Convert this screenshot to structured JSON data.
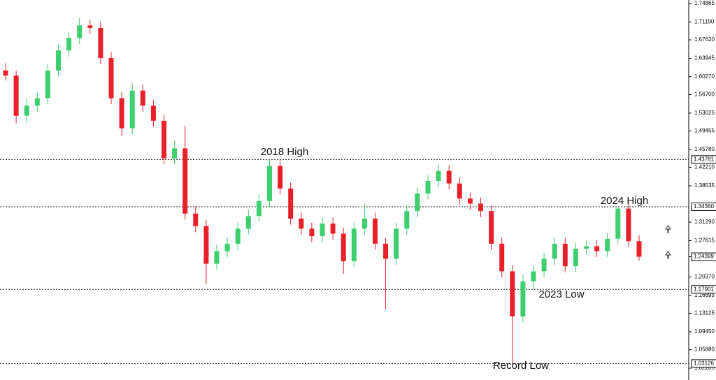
{
  "chart_data": {
    "type": "candlestick",
    "color_up": "#3dcf6e",
    "color_down": "#e8202a",
    "ylim": [
      1.0179,
      1.7556
    ],
    "yticks": [
      {
        "value": 1.74865,
        "label": "1.74865"
      },
      {
        "value": 1.7119,
        "label": "1.71190"
      },
      {
        "value": 1.6762,
        "label": "1.67620"
      },
      {
        "value": 1.63945,
        "label": "1.63945"
      },
      {
        "value": 1.6027,
        "label": "1.60270"
      },
      {
        "value": 1.567,
        "label": "1.56700"
      },
      {
        "value": 1.53025,
        "label": "1.53025"
      },
      {
        "value": 1.49455,
        "label": "1.49455"
      },
      {
        "value": 1.4578,
        "label": "1.45780"
      },
      {
        "value": 1.4221,
        "label": "1.42210"
      },
      {
        "value": 1.38535,
        "label": "1.38535"
      },
      {
        "value": 1.3129,
        "label": "1.31290"
      },
      {
        "value": 1.27615,
        "label": "1.27615"
      },
      {
        "value": 1.2037,
        "label": "1.20370"
      },
      {
        "value": 1.16695,
        "label": "1.16695"
      },
      {
        "value": 1.13125,
        "label": "1.13125"
      },
      {
        "value": 1.0945,
        "label": "1.09450"
      },
      {
        "value": 1.0588,
        "label": "1.05880"
      },
      {
        "value": 1.02205,
        "label": "1.02205"
      }
    ],
    "levels": [
      {
        "value": 1.43781,
        "label": "1.43781"
      },
      {
        "value": 1.3436,
        "label": "1.34360"
      },
      {
        "value": 1.17901,
        "label": "1.17901"
      },
      {
        "value": 1.03126,
        "label": "1.03126"
      }
    ],
    "price_label": {
      "value": 1.24399,
      "label": "1.24399"
    },
    "annotations": [
      "2018 High",
      "2024 High",
      "2023 Low",
      "Record Low"
    ],
    "open": [
      1.615,
      1.605,
      1.525,
      1.545,
      1.56,
      1.615,
      1.655,
      1.68,
      1.705,
      1.7,
      1.64,
      1.56,
      1.5,
      1.575,
      1.545,
      1.515,
      1.44,
      1.46,
      1.33,
      1.305,
      1.23,
      1.255,
      1.27,
      1.3,
      1.325,
      1.355,
      1.425,
      1.38,
      1.32,
      1.3,
      1.285,
      1.31,
      1.29,
      1.235,
      1.3,
      1.32,
      1.27,
      1.24,
      1.3,
      1.335,
      1.37,
      1.395,
      1.415,
      1.39,
      1.36,
      1.35,
      1.335,
      1.27,
      1.215,
      1.125,
      1.195,
      1.215,
      1.24,
      1.27,
      1.225,
      1.26,
      1.265,
      1.255,
      1.28,
      1.34,
      1.275
    ],
    "high": [
      1.63,
      1.615,
      1.558,
      1.572,
      1.628,
      1.668,
      1.692,
      1.72,
      1.716,
      1.712,
      1.652,
      1.572,
      1.59,
      1.587,
      1.557,
      1.527,
      1.475,
      1.505,
      1.345,
      1.317,
      1.268,
      1.282,
      1.312,
      1.338,
      1.368,
      1.4378,
      1.437,
      1.392,
      1.332,
      1.312,
      1.322,
      1.322,
      1.302,
      1.312,
      1.35,
      1.332,
      1.282,
      1.312,
      1.347,
      1.382,
      1.407,
      1.427,
      1.427,
      1.402,
      1.372,
      1.362,
      1.347,
      1.282,
      1.227,
      1.207,
      1.227,
      1.252,
      1.282,
      1.282,
      1.272,
      1.277,
      1.277,
      1.292,
      1.3436,
      1.352,
      1.287
    ],
    "low": [
      1.595,
      1.51,
      1.51,
      1.532,
      1.548,
      1.603,
      1.643,
      1.668,
      1.688,
      1.628,
      1.548,
      1.485,
      1.488,
      1.533,
      1.503,
      1.428,
      1.428,
      1.318,
      1.293,
      1.19,
      1.218,
      1.243,
      1.258,
      1.288,
      1.313,
      1.343,
      1.368,
      1.308,
      1.288,
      1.273,
      1.273,
      1.278,
      1.21,
      1.223,
      1.288,
      1.258,
      1.14,
      1.228,
      1.288,
      1.323,
      1.358,
      1.383,
      1.378,
      1.348,
      1.338,
      1.323,
      1.258,
      1.203,
      1.0313,
      1.113,
      1.179,
      1.203,
      1.228,
      1.213,
      1.213,
      1.248,
      1.243,
      1.243,
      1.268,
      1.263,
      1.236
    ],
    "close": [
      1.605,
      1.525,
      1.545,
      1.56,
      1.615,
      1.655,
      1.68,
      1.705,
      1.7,
      1.64,
      1.56,
      1.5,
      1.575,
      1.545,
      1.515,
      1.44,
      1.46,
      1.33,
      1.305,
      1.23,
      1.255,
      1.27,
      1.3,
      1.325,
      1.355,
      1.425,
      1.38,
      1.32,
      1.3,
      1.285,
      1.31,
      1.29,
      1.235,
      1.3,
      1.32,
      1.27,
      1.24,
      1.3,
      1.335,
      1.37,
      1.395,
      1.415,
      1.39,
      1.36,
      1.35,
      1.335,
      1.27,
      1.215,
      1.125,
      1.195,
      1.215,
      1.24,
      1.27,
      1.225,
      1.26,
      1.265,
      1.255,
      1.28,
      1.34,
      1.275,
      1.244
    ]
  }
}
